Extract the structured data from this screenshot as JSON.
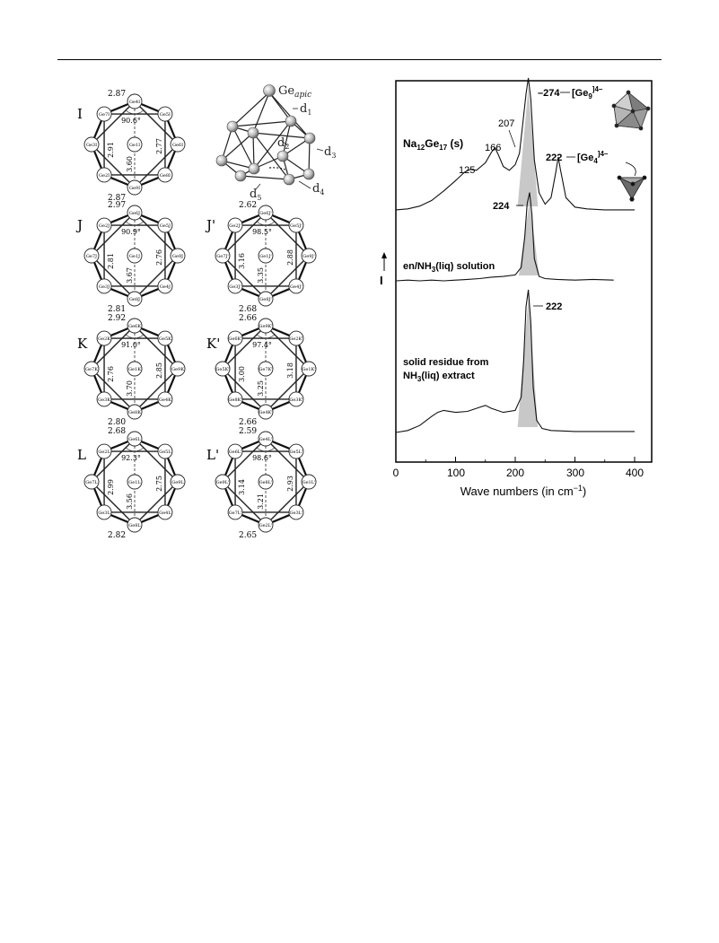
{
  "clusters": [
    {
      "label": "I",
      "top_dist": "2.87",
      "angle": "90.6°",
      "left_dist": "2.91",
      "right_dist": "2.77",
      "diag_dist": "3.60",
      "bottom_dist": "2.87",
      "atoms": [
        "Ge4I",
        "Ge5I",
        "Ge6I",
        "Ge8I",
        "Ge9I",
        "Ge2I",
        "Ge3I",
        "Ge7I",
        "Ge1I"
      ]
    },
    {
      "label": "J",
      "top_dist": "2.97",
      "angle": "90.9°",
      "left_dist": "2.81",
      "right_dist": "2.76",
      "diag_dist": "3.67",
      "bottom_dist": "2.81",
      "atoms": [
        "Ge6J",
        "Ge5J",
        "Ge9J",
        "Ge4J",
        "Ge8J",
        "Ge3J",
        "Ge7J",
        "Ge2J",
        "Ge1J"
      ]
    },
    {
      "label": "J'",
      "top_dist": "2.62",
      "angle": "98.5°",
      "left_dist": "3.16",
      "right_dist": "2.88",
      "diag_dist": "3.35",
      "bottom_dist": "2.68",
      "atoms": [
        "Ge6J'",
        "Ge5J'",
        "Ge9J'",
        "Ge4J'",
        "Ge8J'",
        "Ge3J'",
        "Ge7J'",
        "Ge2J'",
        "Ge1J'"
      ]
    },
    {
      "label": "K",
      "top_dist": "2.92",
      "angle": "91.0°",
      "left_dist": "2.76",
      "right_dist": "2.85",
      "diag_dist": "3.70",
      "bottom_dist": "2.80",
      "atoms": [
        "Ge6K",
        "Ge5K",
        "Ge9K",
        "Ge4K",
        "Ge8K",
        "Ge3K",
        "Ge7K",
        "Ge2K",
        "Ge1K"
      ]
    },
    {
      "label": "K'",
      "top_dist": "2.66",
      "angle": "97.4°",
      "left_dist": "3.00",
      "right_dist": "3.18",
      "diag_dist": "3.25",
      "bottom_dist": "2.66",
      "atoms": [
        "Ge9K'",
        "Ge2K'",
        "Ge1K'",
        "Ge3K'",
        "Ge4K'",
        "Ge8K'",
        "Ge5K'",
        "Ge6K'",
        "Ge7K'"
      ]
    },
    {
      "label": "L",
      "top_dist": "2.68",
      "angle": "92.3°",
      "left_dist": "2.99",
      "right_dist": "2.75",
      "diag_dist": "3.56",
      "bottom_dist": "2.82",
      "atoms": [
        "Ge6L",
        "Ge5L",
        "Ge9L",
        "Ge4L",
        "Ge8L",
        "Ge3L",
        "Ge7L",
        "Ge2L",
        "Ge1L"
      ]
    },
    {
      "label": "L'",
      "top_dist": "2.59",
      "angle": "98.6°",
      "left_dist": "3.14",
      "right_dist": "2.93",
      "diag_dist": "3.21",
      "bottom_dist": "2.65",
      "atoms": [
        "Ge4L'",
        "Ge5L'",
        "Ge1L'",
        "Ge3L'",
        "Ge2L'",
        "Ge7L'",
        "Ge9L'",
        "Ge6L'",
        "Ge8L'"
      ]
    }
  ],
  "apical": {
    "label": "Ge",
    "sub": "apic",
    "d1": "d",
    "d1s": "1",
    "d2": "d",
    "d2s": "2",
    "d3": "d",
    "d3s": "3",
    "d4": "d",
    "d4s": "4",
    "d5": "d",
    "d5s": "5"
  },
  "chart_data": {
    "type": "line",
    "xlabel": "Wave numbers (in cm⁻¹)",
    "ylabel": "I",
    "xlim": [
      0,
      400
    ],
    "xticks": [
      0,
      100,
      200,
      300,
      400
    ],
    "series": [
      {
        "name": "Na₁₂Ge₁₇ (s)",
        "x": [
          0,
          20,
          40,
          60,
          80,
          100,
          115,
          125,
          135,
          150,
          160,
          166,
          172,
          180,
          190,
          200,
          207,
          212,
          218,
          222,
          226,
          232,
          240,
          250,
          260,
          268,
          272,
          276,
          285,
          300,
          320,
          350,
          380,
          400
        ],
        "y": [
          0.02,
          0.03,
          0.06,
          0.12,
          0.22,
          0.33,
          0.42,
          0.45,
          0.44,
          0.52,
          0.63,
          0.68,
          0.6,
          0.48,
          0.44,
          0.5,
          0.62,
          0.9,
          1.25,
          1.42,
          1.2,
          0.55,
          0.2,
          0.08,
          0.15,
          0.42,
          0.58,
          0.44,
          0.15,
          0.05,
          0.03,
          0.02,
          0.02,
          0.02
        ]
      },
      {
        "name": "en/NH₃(liq) solution",
        "x": [
          0,
          20,
          40,
          60,
          80,
          100,
          120,
          140,
          160,
          180,
          200,
          210,
          216,
          220,
          224,
          228,
          232,
          240,
          250,
          270,
          300,
          330,
          365
        ],
        "y": [
          0.0,
          0.01,
          0.0,
          0.01,
          0.0,
          0.01,
          0.02,
          0.03,
          0.05,
          0.06,
          0.08,
          0.18,
          0.6,
          1.05,
          1.2,
          0.9,
          0.3,
          0.06,
          0.03,
          0.02,
          0.01,
          0.02,
          0.01
        ]
      },
      {
        "name": "solid residue from NH₃(liq) extract",
        "x": [
          0,
          20,
          40,
          60,
          70,
          80,
          100,
          120,
          140,
          150,
          160,
          180,
          200,
          210,
          214,
          218,
          222,
          226,
          230,
          236,
          245,
          260,
          300,
          350,
          400
        ],
        "y": [
          0.0,
          0.02,
          0.07,
          0.16,
          0.2,
          0.22,
          0.2,
          0.21,
          0.25,
          0.27,
          0.24,
          0.2,
          0.22,
          0.35,
          0.7,
          1.25,
          1.42,
          1.1,
          0.45,
          0.12,
          0.04,
          0.02,
          0.01,
          0.01,
          0.01
        ]
      }
    ],
    "annotations": [
      "274",
      "[Ge₉]⁴⁻",
      "207",
      "166",
      "125",
      "222",
      "[Ge₄]⁴⁻",
      "224",
      "222"
    ]
  },
  "spectrum_labels": {
    "peak_274": "274",
    "ge9": "[Ge",
    "ge9_sub": "9",
    "ge9_sup": "]4–",
    "peak_207": "207",
    "peak_166": "166",
    "peak_125": "125",
    "peak_222a": "222",
    "ge4": "[Ge",
    "ge4_sub": "4",
    "ge4_sup": "]4–",
    "peak_224": "224",
    "peak_222b": "222",
    "na_label_a": "Na",
    "na_sub1": "12",
    "na_label_b": "Ge",
    "na_sub2": "17",
    "na_label_c": " (s)",
    "en_label_a": "en/NH",
    "en_sub": "3",
    "en_label_b": "(liq) solution",
    "res_line1": "solid residue from",
    "res_line2a": "NH",
    "res_sub": "3",
    "res_line2b": "(liq) extract",
    "axis_title": "Wave numbers (in cm",
    "axis_title_sup": "−1",
    "axis_title_end": ")",
    "y_label": "I",
    "tick0": "0",
    "tick100": "100",
    "tick200": "200",
    "tick300": "300",
    "tick400": "400"
  }
}
